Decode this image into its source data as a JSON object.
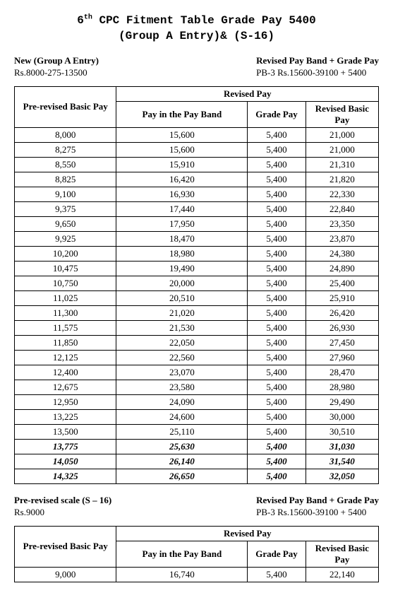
{
  "title_line1_pre": "6",
  "title_line1_sup": "th",
  "title_line1_post": " CPC Fitment Table Grade Pay 5400",
  "title_line2": "(Group A Entry)& (S-16)",
  "section1": {
    "left_label": "New (Group A Entry)",
    "left_value": "Rs.8000-275-13500",
    "right_label": "Revised Pay Band + Grade Pay",
    "right_value": "PB-3 Rs.15600-39100 + 5400"
  },
  "headers": {
    "pre": "Pre-revised Basic Pay",
    "revised": "Revised Pay",
    "band": "Pay in the Pay Band",
    "gp": "Grade Pay",
    "rbp": "Revised Basic Pay"
  },
  "table1": [
    {
      "pre": "8,000",
      "band": "15,600",
      "gp": "5,400",
      "rev": "21,000",
      "italic": false
    },
    {
      "pre": "8,275",
      "band": "15,600",
      "gp": "5,400",
      "rev": "21,000",
      "italic": false
    },
    {
      "pre": "8,550",
      "band": "15,910",
      "gp": "5,400",
      "rev": "21,310",
      "italic": false
    },
    {
      "pre": "8,825",
      "band": "16,420",
      "gp": "5,400",
      "rev": "21,820",
      "italic": false
    },
    {
      "pre": "9,100",
      "band": "16,930",
      "gp": "5,400",
      "rev": "22,330",
      "italic": false
    },
    {
      "pre": "9,375",
      "band": "17,440",
      "gp": "5,400",
      "rev": "22,840",
      "italic": false
    },
    {
      "pre": "9,650",
      "band": "17,950",
      "gp": "5,400",
      "rev": "23,350",
      "italic": false
    },
    {
      "pre": "9,925",
      "band": "18,470",
      "gp": "5,400",
      "rev": "23,870",
      "italic": false
    },
    {
      "pre": "10,200",
      "band": "18,980",
      "gp": "5,400",
      "rev": "24,380",
      "italic": false
    },
    {
      "pre": "10,475",
      "band": "19,490",
      "gp": "5,400",
      "rev": "24,890",
      "italic": false
    },
    {
      "pre": "10,750",
      "band": "20,000",
      "gp": "5,400",
      "rev": "25,400",
      "italic": false
    },
    {
      "pre": "11,025",
      "band": "20,510",
      "gp": "5,400",
      "rev": "25,910",
      "italic": false
    },
    {
      "pre": "11,300",
      "band": "21,020",
      "gp": "5,400",
      "rev": "26,420",
      "italic": false
    },
    {
      "pre": "11,575",
      "band": "21,530",
      "gp": "5,400",
      "rev": "26,930",
      "italic": false
    },
    {
      "pre": "11,850",
      "band": "22,050",
      "gp": "5,400",
      "rev": "27,450",
      "italic": false
    },
    {
      "pre": "12,125",
      "band": "22,560",
      "gp": "5,400",
      "rev": "27,960",
      "italic": false
    },
    {
      "pre": "12,400",
      "band": "23,070",
      "gp": "5,400",
      "rev": "28,470",
      "italic": false
    },
    {
      "pre": "12,675",
      "band": "23,580",
      "gp": "5,400",
      "rev": "28,980",
      "italic": false
    },
    {
      "pre": "12,950",
      "band": "24,090",
      "gp": "5,400",
      "rev": "29,490",
      "italic": false
    },
    {
      "pre": "13,225",
      "band": "24,600",
      "gp": "5,400",
      "rev": "30,000",
      "italic": false
    },
    {
      "pre": "13,500",
      "band": "25,110",
      "gp": "5,400",
      "rev": "30,510",
      "italic": false
    },
    {
      "pre": "13,775",
      "band": "25,630",
      "gp": "5,400",
      "rev": "31,030",
      "italic": true
    },
    {
      "pre": "14,050",
      "band": "26,140",
      "gp": "5,400",
      "rev": "31,540",
      "italic": true
    },
    {
      "pre": "14,325",
      "band": "26,650",
      "gp": "5,400",
      "rev": "32,050",
      "italic": true
    }
  ],
  "section2": {
    "left_label": "Pre-revised scale (S – 16)",
    "left_value": "Rs.9000",
    "right_label": "Revised Pay Band + Grade Pay",
    "right_value": "PB-3 Rs.15600-39100 + 5400"
  },
  "table2": [
    {
      "pre": "9,000",
      "band": "16,740",
      "gp": "5,400",
      "rev": "22,140",
      "italic": false
    }
  ]
}
